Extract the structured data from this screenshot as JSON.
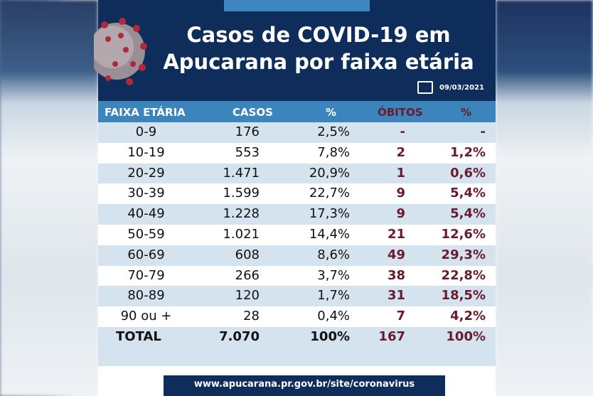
{
  "title_line1": "Casos de COVID-19 em",
  "title_line2": "Apucarana por faixa etária",
  "date": "09/03/2021",
  "headers": [
    "FAIXA ETÁRIA",
    "CASOS",
    "%",
    "ÓBITOS",
    "%"
  ],
  "rows": [
    [
      "0-9",
      "176",
      "2,5%",
      "-",
      "-"
    ],
    [
      "10-19",
      "553",
      "7,8%",
      "2",
      "1,2%"
    ],
    [
      "20-29",
      "1.471",
      "20,9%",
      "1",
      "0,6%"
    ],
    [
      "30-39",
      "1.599",
      "22,7%",
      "9",
      "5,4%"
    ],
    [
      "40-49",
      "1.228",
      "17,3%",
      "9",
      "5,4%"
    ],
    [
      "50-59",
      "1.021",
      "14,4%",
      "21",
      "12,6%"
    ],
    [
      "60-69",
      "608",
      "8,6%",
      "49",
      "29,3%"
    ],
    [
      "70-79",
      "266",
      "3,7%",
      "38",
      "22,8%"
    ],
    [
      "80-89",
      "120",
      "1,7%",
      "31",
      "18,5%"
    ],
    [
      "90 ou +",
      "28",
      "0,4%",
      "7",
      "4,2%"
    ]
  ],
  "total": [
    "TOTAL",
    "7.070",
    "100%",
    "167",
    "100%"
  ],
  "footer_url": "www.apucarana.pr.gov.br/site/coronavirus",
  "colors": {
    "navy": "#0f2d5a",
    "header_blue": "#3b84bc",
    "row_light": "#d4e3ee",
    "deaths": "#6b1a2e"
  }
}
